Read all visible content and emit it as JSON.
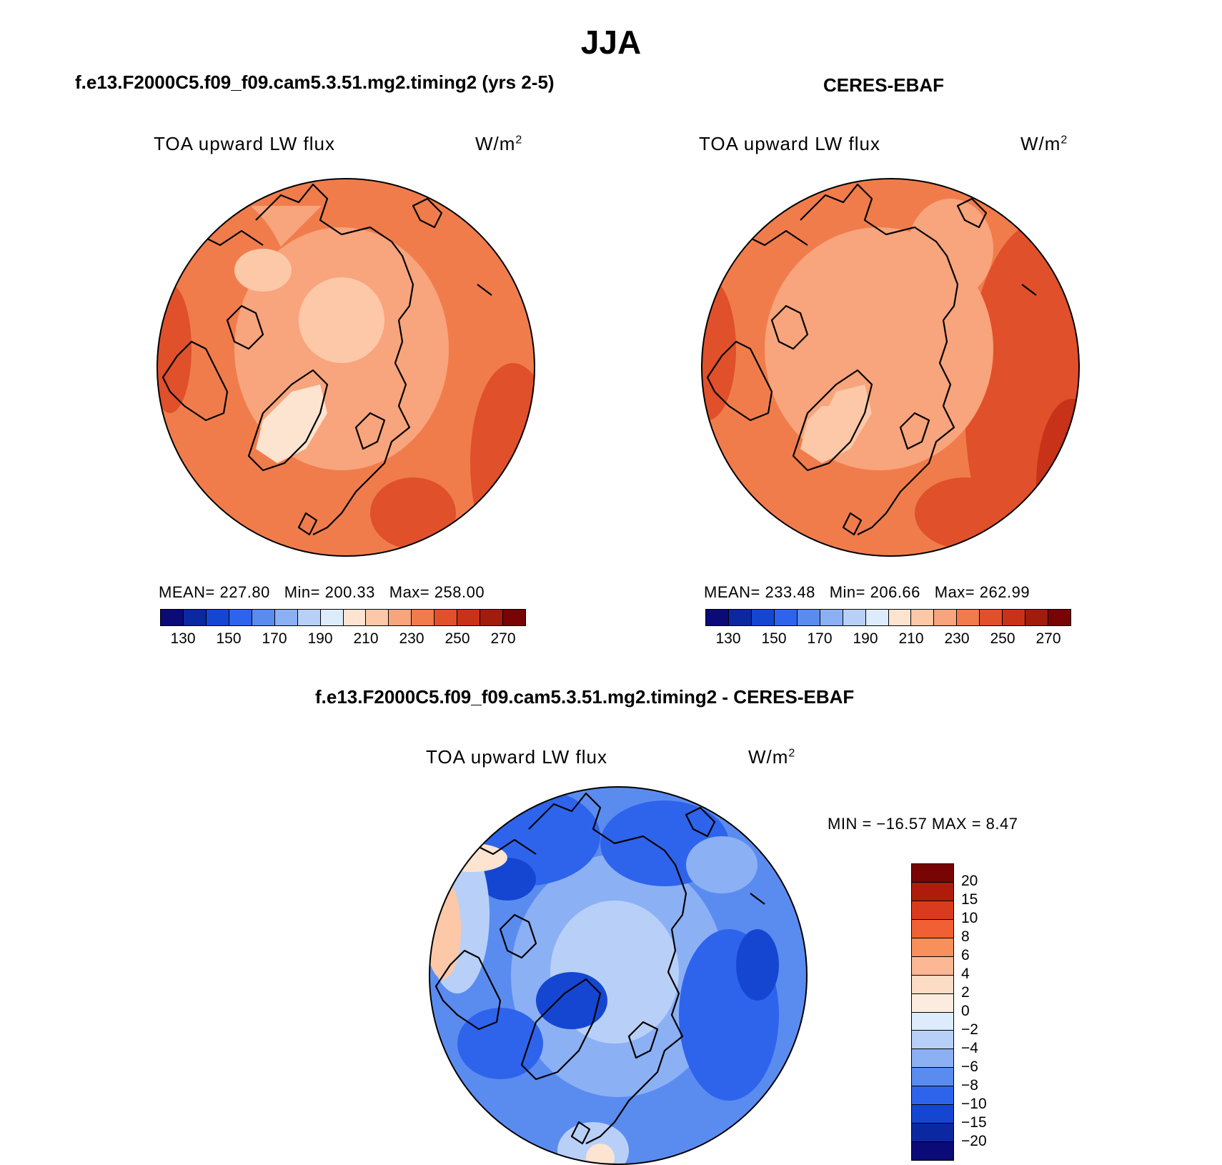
{
  "title": "JJA",
  "variable": "TOA upward LW flux",
  "units": "W/m",
  "units_sup": "2",
  "panel1": {
    "title": "f.e13.F2000C5.f09_f09.cam5.3.51.mg2.timing2 (yrs 2-5)",
    "mean_label": "MEAN=",
    "mean": "227.80",
    "min_label": "Min=",
    "min": "200.33",
    "max_label": "Max=",
    "max": "258.00"
  },
  "panel2": {
    "title": "CERES-EBAF",
    "mean_label": "MEAN=",
    "mean": "233.48",
    "min_label": "Min=",
    "min": "206.66",
    "max_label": "Max=",
    "max": "262.99"
  },
  "panel3": {
    "title": "f.e13.F2000C5.f09_f09.cam5.3.51.mg2.timing2 - CERES-EBAF",
    "minmax": "MIN = −16.57 MAX =    8.47"
  },
  "colorbar_top": {
    "colors": [
      "#0a0a78",
      "#0c28a0",
      "#1546d2",
      "#2e64ec",
      "#5a8cf0",
      "#8cb0f4",
      "#b8d0f8",
      "#dcecfc",
      "#fce4d0",
      "#fcc8a8",
      "#f8a47c",
      "#f07c4c",
      "#e0502a",
      "#c83218",
      "#a01c0c",
      "#780404"
    ],
    "ticks": [
      "130",
      "150",
      "170",
      "190",
      "210",
      "230",
      "250",
      "270"
    ]
  },
  "colorbar_diff": {
    "colors": [
      "#780404",
      "#b01c0c",
      "#d83c1c",
      "#f06034",
      "#f8905c",
      "#fcb894",
      "#fcdcc4",
      "#fcece0",
      "#dcecfc",
      "#b8d0f8",
      "#8cb0f4",
      "#5a8cf0",
      "#2e64ec",
      "#1546d2",
      "#0c28a0",
      "#0a0a78"
    ],
    "ticks": [
      "20",
      "15",
      "10",
      "8",
      "6",
      "4",
      "2",
      "0",
      "−2",
      "−4",
      "−6",
      "−8",
      "−10",
      "−15",
      "−20"
    ]
  }
}
